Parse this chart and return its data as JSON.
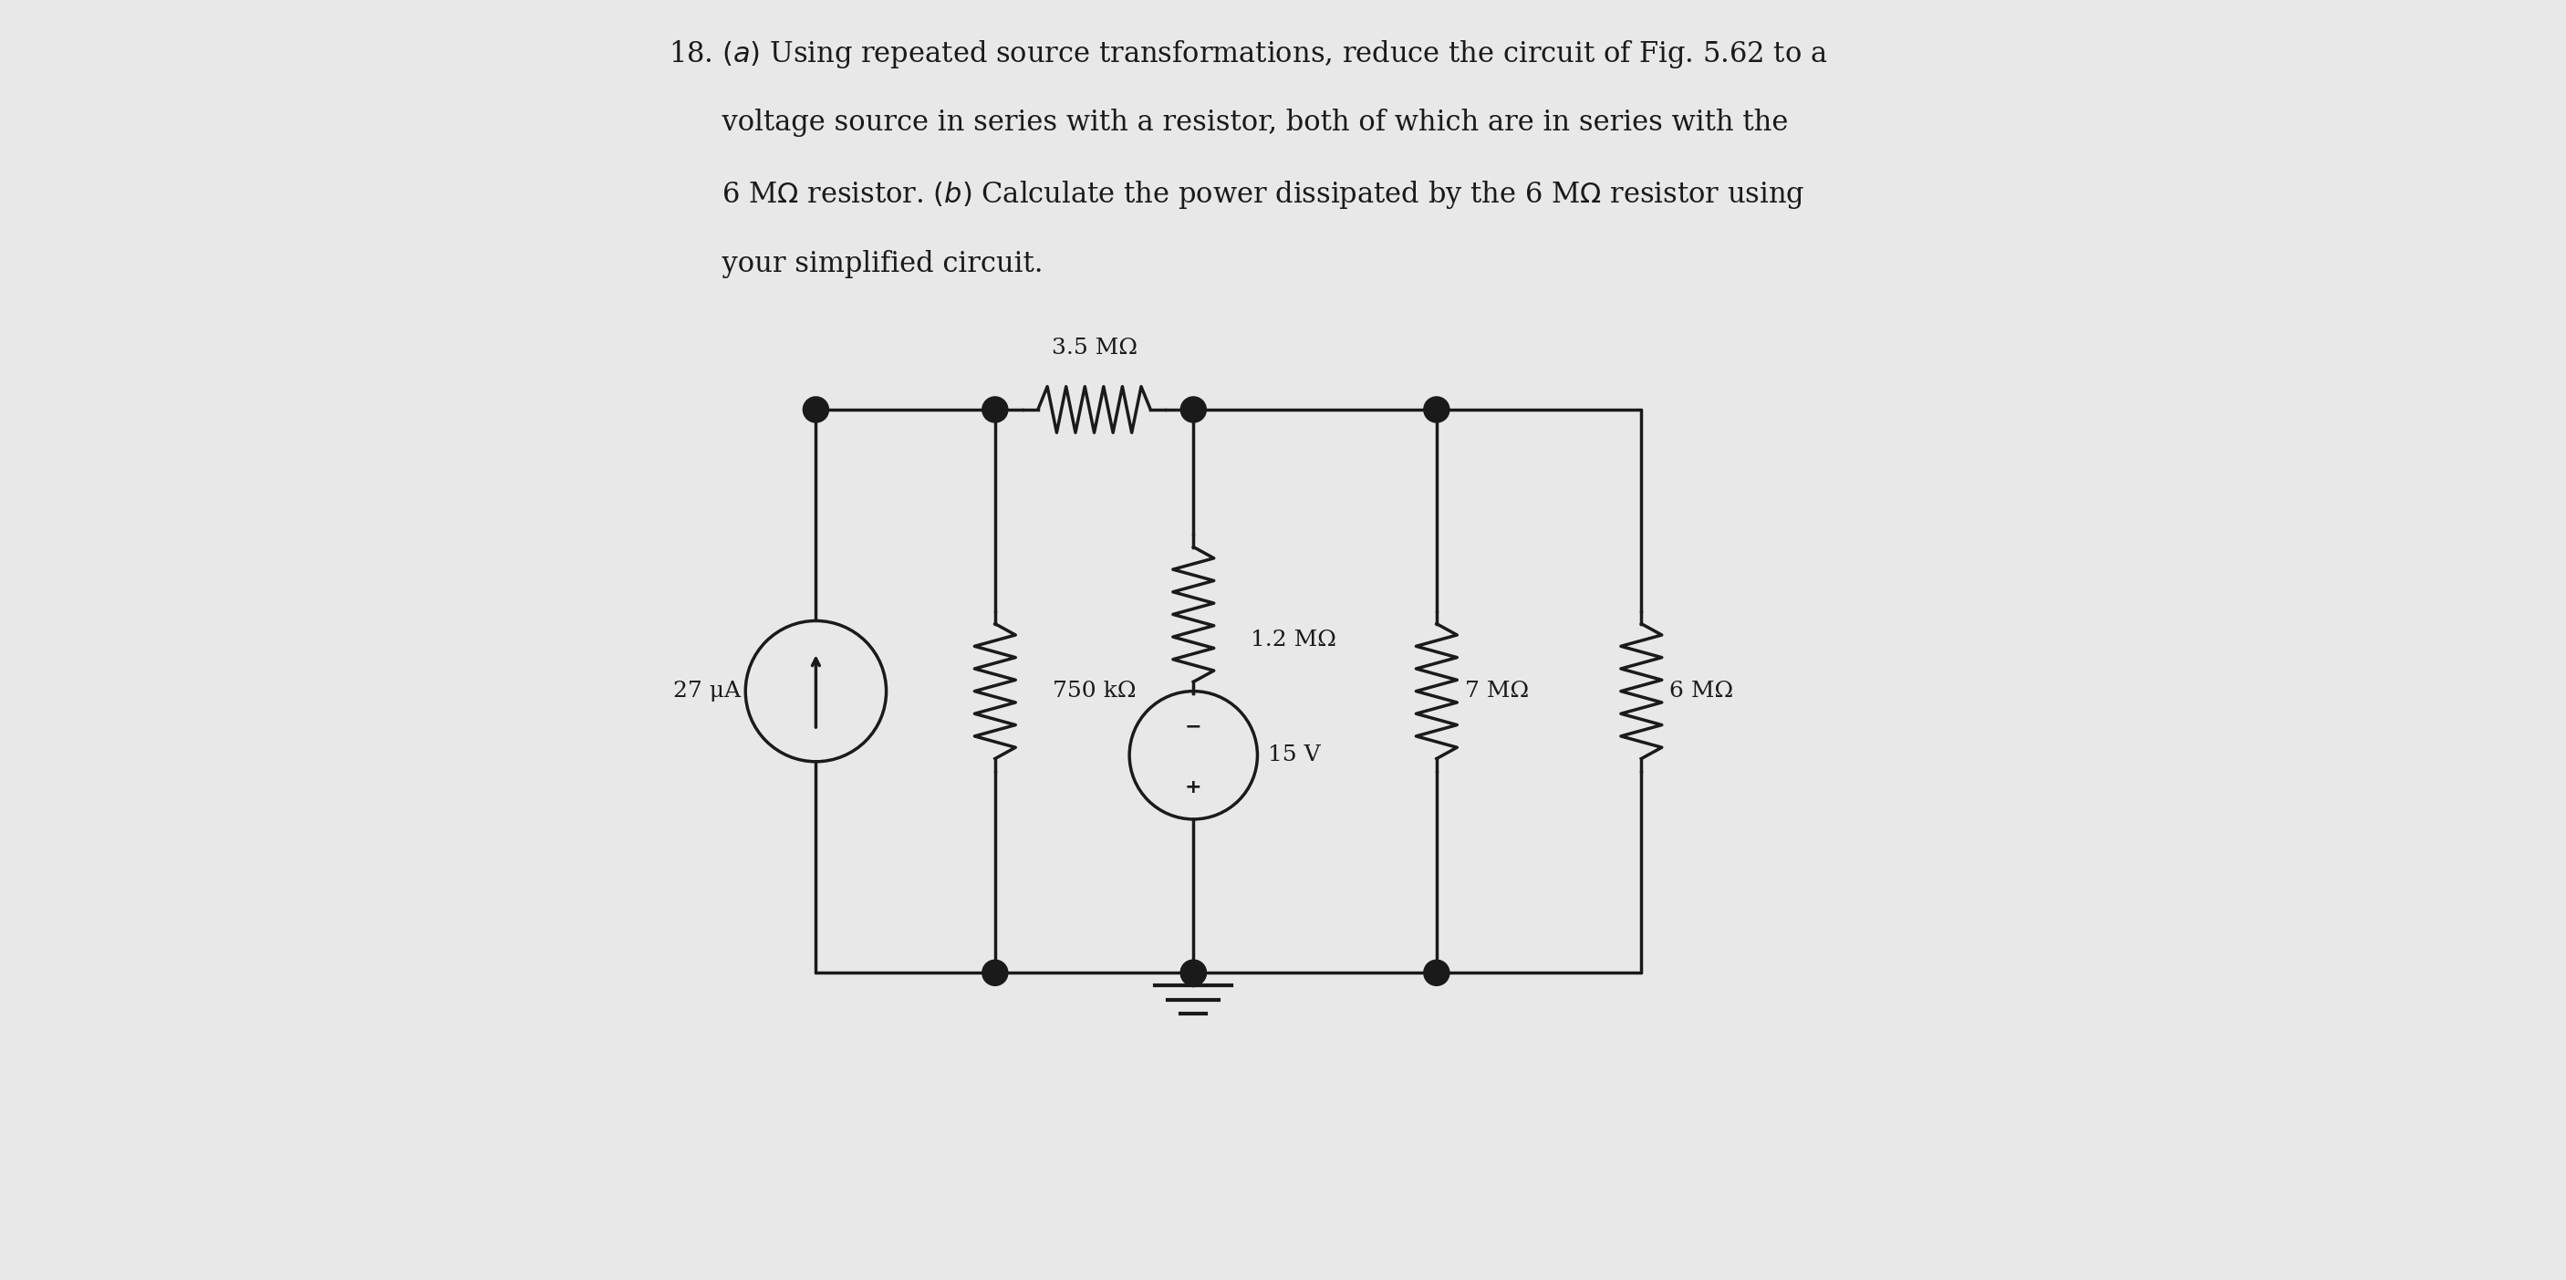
{
  "bg_color": "#e8e8e8",
  "text_color": "#1a1a1a",
  "title_text": "18. (a) Using repeated source transformations, reduce the circuit of Fig. 5.62 to a\n     voltage source in series with a resistor, both of which are in series with the\n     6 MΩ resistor. (b) Calculate the power dissipated by the 6 MΩ resistor using\n     your simplified circuit.",
  "label_27uA": "27 μA",
  "label_750k": "750 kΩ",
  "label_35M": "3.5 MΩ",
  "label_12M": "1.2 MΩ",
  "label_15V": "15 V",
  "label_7M": "7 MΩ",
  "label_6M": "6 MΩ",
  "lw": 2.5,
  "node_r": 0.018,
  "resistor_color": "#1a1a1a",
  "wire_color": "#1a1a1a",
  "font_size_title": 22,
  "font_size_label": 18
}
